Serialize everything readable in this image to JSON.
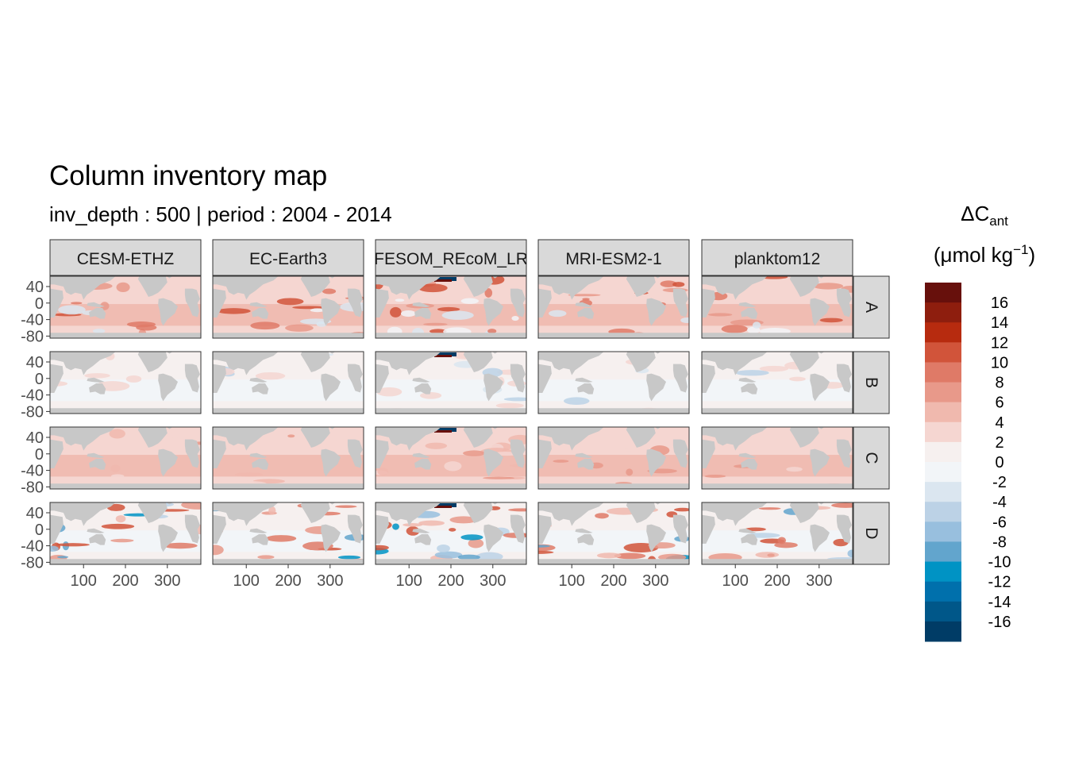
{
  "title": "Column inventory map",
  "subtitle": "inv_depth : 500 | period : 2004 - 2014",
  "chart_data": {
    "type": "heatmap",
    "facet_columns": [
      "CESM-ETHZ",
      "EC-Earth3",
      "FESOM_REcoM_LR",
      "MRI-ESM2-1",
      "planktom12"
    ],
    "facet_rows": [
      "A",
      "B",
      "C",
      "D"
    ],
    "x_ticks": [
      100,
      200,
      300
    ],
    "y_ticks": [
      40,
      0,
      -40,
      -80
    ],
    "xlim": [
      20,
      380
    ],
    "ylim": [
      -85,
      65
    ],
    "legend": {
      "title_prefix": "ΔC",
      "title_sub": "ant",
      "unit_prefix": "(μmol kg",
      "unit_sup": "−1",
      "unit_suffix": ")",
      "labels": [
        "16",
        "14",
        "12",
        "10",
        "8",
        "6",
        "4",
        "2",
        "0",
        "-2",
        "-4",
        "-6",
        "-8",
        "-10",
        "-12",
        "-14",
        "-16"
      ],
      "colors": [
        "#67100c",
        "#8e1e0e",
        "#b72b0f",
        "#d1543a",
        "#df7a67",
        "#e8998a",
        "#f0b9ae",
        "#f5d6d1",
        "#f6f0ef",
        "#f2f5f8",
        "#dbe6f0",
        "#bcd2e6",
        "#98bfde",
        "#62a5cd",
        "#0093c4",
        "#0070ac",
        "#005789",
        "#003c66"
      ]
    },
    "land_color": "#c8c8c8",
    "strip_fill": "#d9d9d9"
  }
}
